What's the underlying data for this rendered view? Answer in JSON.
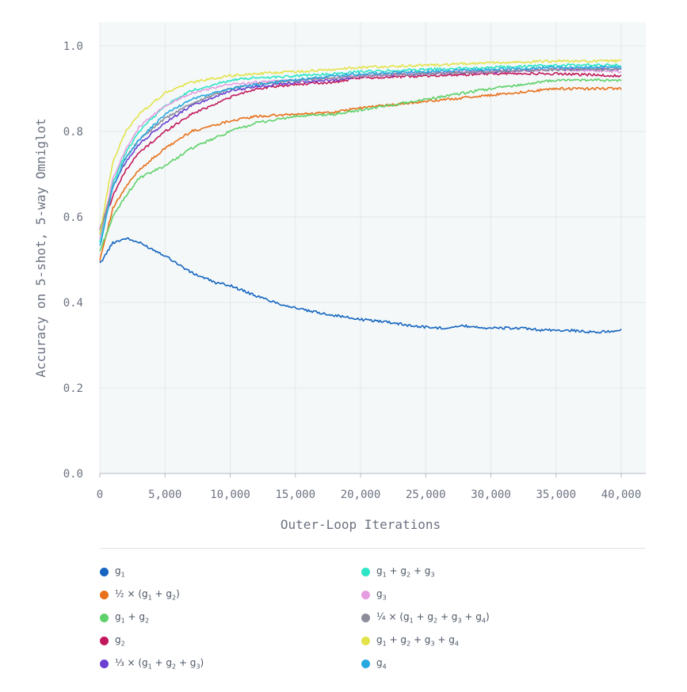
{
  "chart_data": {
    "type": "line",
    "title": "",
    "xlabel": "Outer-Loop Iterations",
    "ylabel": "Accuracy on 5-shot, 5-way Omniglot",
    "xlim": [
      0,
      40000
    ],
    "ylim": [
      0,
      1.0
    ],
    "grid": true,
    "xticks": [
      0,
      5000,
      10000,
      15000,
      20000,
      25000,
      30000,
      35000,
      40000
    ],
    "xtick_labels": [
      "0",
      "5,000",
      "10,000",
      "15,000",
      "20,000",
      "25,000",
      "30,000",
      "35,000",
      "40,000"
    ],
    "yticks": [
      0.0,
      0.2,
      0.4,
      0.6,
      0.8,
      1.0
    ],
    "ytick_labels": [
      "0.0",
      "0.2",
      "0.4",
      "0.6",
      "0.8",
      "1.0"
    ],
    "legend_position": "bottom",
    "series": [
      {
        "name": "g1",
        "label_html": "g<sub>1</sub>",
        "color": "#1565c0",
        "x": [
          0,
          1000,
          2000,
          3000,
          5000,
          7000,
          9000,
          10000,
          12000,
          14000,
          16000,
          18000,
          20000,
          22000,
          24000,
          26000,
          28000,
          30000,
          32000,
          34000,
          36000,
          38000,
          40000
        ],
        "y": [
          0.49,
          0.54,
          0.55,
          0.54,
          0.51,
          0.47,
          0.445,
          0.44,
          0.415,
          0.395,
          0.38,
          0.37,
          0.36,
          0.355,
          0.345,
          0.34,
          0.345,
          0.34,
          0.34,
          0.335,
          0.335,
          0.33,
          0.335
        ]
      },
      {
        "name": "1/2 x (g1 + g2)",
        "label_html": "½ × (g<sub>1</sub> + g<sub>2</sub>)",
        "color": "#e8701a",
        "x": [
          0,
          1000,
          2000,
          3000,
          5000,
          7000,
          10000,
          12000,
          15000,
          18000,
          20000,
          25000,
          30000,
          35000,
          40000
        ],
        "y": [
          0.5,
          0.62,
          0.67,
          0.71,
          0.76,
          0.8,
          0.825,
          0.835,
          0.84,
          0.845,
          0.855,
          0.87,
          0.885,
          0.9,
          0.9
        ]
      },
      {
        "name": "g1 + g2",
        "label_html": "g<sub>1</sub> + g<sub>2</sub>",
        "color": "#5fd16a",
        "x": [
          0,
          1000,
          2000,
          3000,
          5000,
          7000,
          10000,
          12000,
          15000,
          18000,
          20000,
          25000,
          30000,
          35000,
          40000
        ],
        "y": [
          0.52,
          0.6,
          0.65,
          0.69,
          0.72,
          0.76,
          0.8,
          0.82,
          0.835,
          0.84,
          0.85,
          0.875,
          0.9,
          0.92,
          0.92
        ]
      },
      {
        "name": "g2",
        "label_html": "g<sub>2</sub>",
        "color": "#c2185b",
        "x": [
          0,
          1000,
          2000,
          3000,
          5000,
          7000,
          10000,
          12000,
          15000,
          18000,
          20000,
          25000,
          30000,
          35000,
          40000
        ],
        "y": [
          0.56,
          0.65,
          0.71,
          0.75,
          0.8,
          0.84,
          0.88,
          0.9,
          0.91,
          0.915,
          0.925,
          0.93,
          0.935,
          0.935,
          0.93
        ]
      },
      {
        "name": "1/3 x (g1 + g2 + g3)",
        "label_html": "⅓ × (g<sub>1</sub> + g<sub>2</sub> + g<sub>3</sub>)",
        "color": "#6a3fd1",
        "x": [
          0,
          1000,
          2000,
          3000,
          5000,
          7000,
          10000,
          12000,
          15000,
          18000,
          20000,
          25000,
          30000,
          35000,
          40000
        ],
        "y": [
          0.57,
          0.67,
          0.73,
          0.77,
          0.82,
          0.86,
          0.895,
          0.905,
          0.915,
          0.92,
          0.93,
          0.935,
          0.94,
          0.945,
          0.945
        ]
      },
      {
        "name": "g1 + g2 + g3",
        "label_html": "g<sub>1</sub> + g<sub>2</sub> + g<sub>3</sub>",
        "color": "#2ee5c6",
        "x": [
          0,
          1000,
          2000,
          3000,
          5000,
          7000,
          10000,
          12000,
          15000,
          18000,
          20000,
          25000,
          30000,
          35000,
          40000
        ],
        "y": [
          0.54,
          0.68,
          0.75,
          0.8,
          0.86,
          0.895,
          0.92,
          0.925,
          0.93,
          0.935,
          0.94,
          0.945,
          0.95,
          0.955,
          0.955
        ]
      },
      {
        "name": "g3",
        "label_html": "g<sub>3</sub>",
        "color": "#e69ce0",
        "x": [
          0,
          1000,
          2000,
          3000,
          5000,
          7000,
          10000,
          12000,
          15000,
          18000,
          20000,
          25000,
          30000,
          35000,
          40000
        ],
        "y": [
          0.55,
          0.69,
          0.76,
          0.81,
          0.86,
          0.89,
          0.91,
          0.915,
          0.92,
          0.925,
          0.93,
          0.935,
          0.94,
          0.945,
          0.94
        ]
      },
      {
        "name": "1/4 x (g1 + g2 + g3 + g4)",
        "label_html": "¼ × (g<sub>1</sub> + g<sub>2</sub> + g<sub>3</sub> + g<sub>4</sub>)",
        "color": "#8b8d99",
        "x": [
          0,
          1000,
          2000,
          3000,
          5000,
          7000,
          10000,
          12000,
          15000,
          18000,
          20000,
          25000,
          30000,
          35000,
          40000
        ],
        "y": [
          0.56,
          0.67,
          0.74,
          0.78,
          0.83,
          0.865,
          0.9,
          0.91,
          0.92,
          0.925,
          0.93,
          0.935,
          0.94,
          0.945,
          0.945
        ]
      },
      {
        "name": "g1 + g2 + g3 + g4",
        "label_html": "g<sub>1</sub> + g<sub>2</sub> + g<sub>3</sub> + g<sub>4</sub>",
        "color": "#e3e34a",
        "x": [
          0,
          1000,
          2000,
          3000,
          5000,
          7000,
          10000,
          12000,
          15000,
          18000,
          20000,
          25000,
          30000,
          35000,
          40000
        ],
        "y": [
          0.56,
          0.73,
          0.8,
          0.84,
          0.89,
          0.915,
          0.93,
          0.935,
          0.94,
          0.945,
          0.95,
          0.955,
          0.96,
          0.965,
          0.965
        ]
      },
      {
        "name": "g4",
        "label_html": "g<sub>4</sub>",
        "color": "#29a8e0",
        "x": [
          0,
          1000,
          2000,
          3000,
          5000,
          7000,
          10000,
          12000,
          15000,
          18000,
          20000,
          25000,
          30000,
          35000,
          40000
        ],
        "y": [
          0.53,
          0.67,
          0.74,
          0.78,
          0.84,
          0.875,
          0.9,
          0.91,
          0.92,
          0.93,
          0.935,
          0.94,
          0.945,
          0.95,
          0.95
        ]
      }
    ]
  }
}
